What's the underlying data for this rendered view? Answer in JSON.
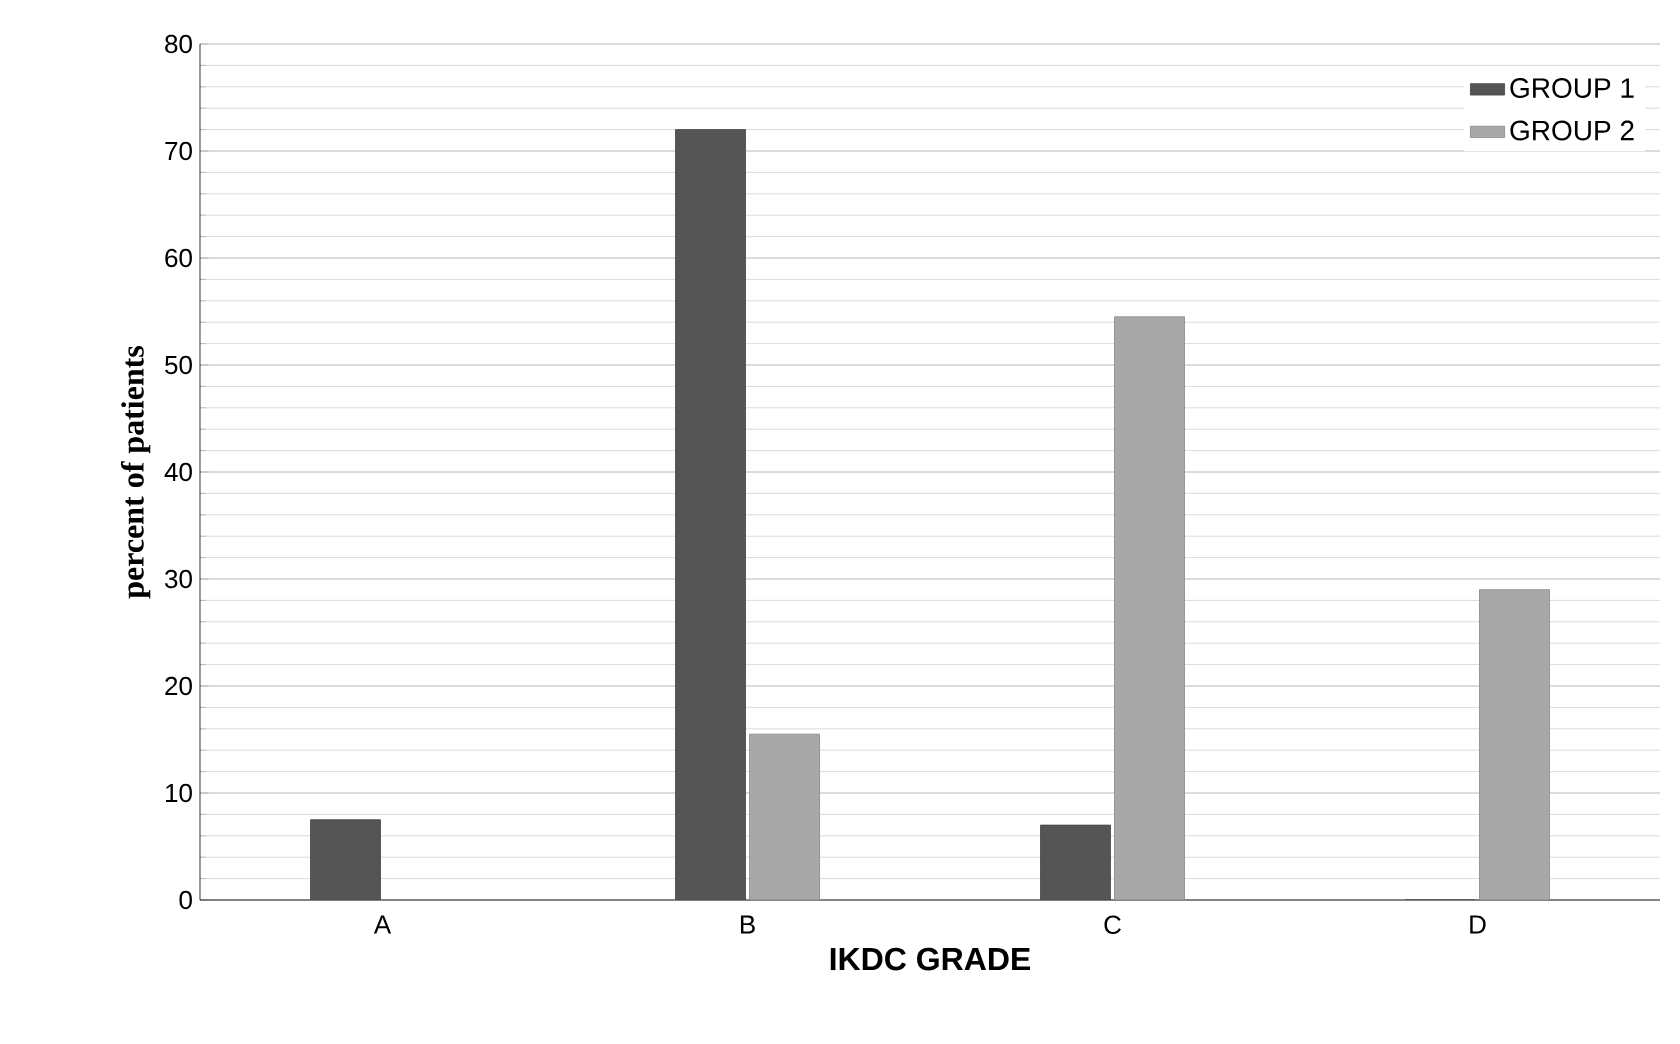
{
  "chart_data": {
    "type": "bar",
    "xlabel": "IKDC GRADE",
    "ylabel": "percent of patients",
    "categories": [
      "A",
      "B",
      "C",
      "D"
    ],
    "series": [
      {
        "name": "GROUP 1",
        "color": "#555555",
        "values": [
          7.5,
          72,
          7,
          0
        ]
      },
      {
        "name": "GROUP 2",
        "color": "#a8a8a8",
        "values": [
          0,
          15.5,
          54.5,
          29
        ]
      }
    ],
    "ylim": [
      0,
      80
    ],
    "yticks": [
      0,
      10,
      20,
      30,
      40,
      50,
      60,
      70,
      80
    ],
    "grid": "y",
    "legend": "top right"
  }
}
